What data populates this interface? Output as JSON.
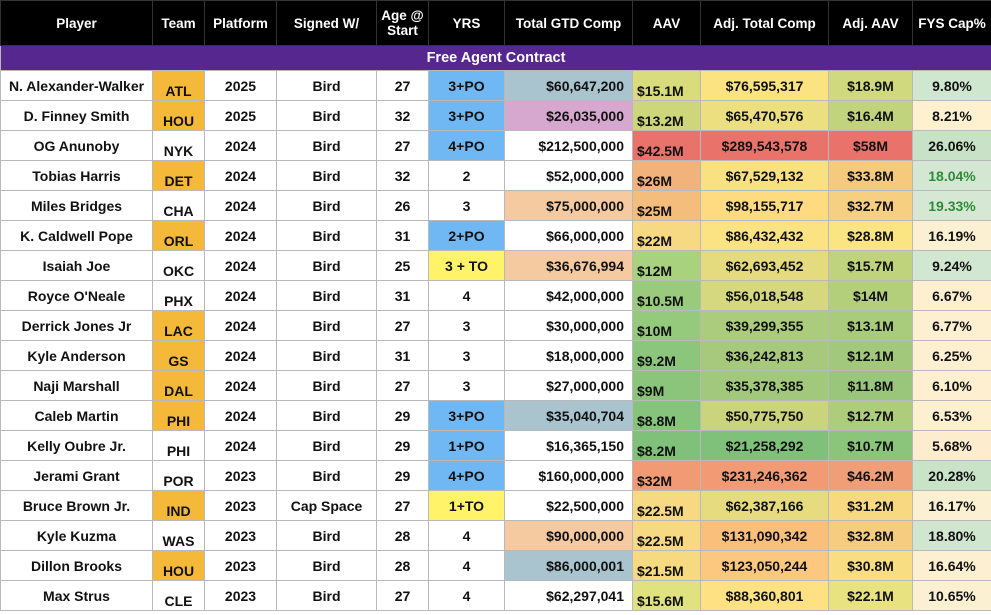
{
  "headers": [
    "Player",
    "Team",
    "Platform",
    "Signed W/",
    "Age @ Start",
    "YRS",
    "Total GTD Comp",
    "AAV",
    "Adj. Total Comp",
    "Adj. AAV",
    "FYS Cap%"
  ],
  "header_age_line1": "Age @",
  "header_age_line2": "Start",
  "banner": "Free Agent Contract",
  "rows": [
    {
      "player": "N. Alexander-Walker",
      "team": "ATL",
      "platform": "2025",
      "signed": "Bird",
      "age": "27",
      "yrs": "3+PO",
      "gtd": "$60,647,200",
      "aav": "$15.1M",
      "adj_total": "$76,595,317",
      "adj_aav": "$18.9M",
      "fys": "9.80%"
    },
    {
      "player": "D. Finney Smith",
      "team": "HOU",
      "platform": "2025",
      "signed": "Bird",
      "age": "32",
      "yrs": "3+PO",
      "gtd": "$26,035,000",
      "aav": "$13.2M",
      "adj_total": "$65,470,576",
      "adj_aav": "$16.4M",
      "fys": "8.21%"
    },
    {
      "player": "OG Anunoby",
      "team": "NYK",
      "platform": "2024",
      "signed": "Bird",
      "age": "27",
      "yrs": "4+PO",
      "gtd": "$212,500,000",
      "aav": "$42.5M",
      "adj_total": "$289,543,578",
      "adj_aav": "$58M",
      "fys": "26.06%"
    },
    {
      "player": "Tobias Harris",
      "team": "DET",
      "platform": "2024",
      "signed": "Bird",
      "age": "32",
      "yrs": "2",
      "gtd": "$52,000,000",
      "aav": "$26M",
      "adj_total": "$67,529,132",
      "adj_aav": "$33.8M",
      "fys": "18.04%"
    },
    {
      "player": "Miles Bridges",
      "team": "CHA",
      "platform": "2024",
      "signed": "Bird",
      "age": "26",
      "yrs": "3",
      "gtd": "$75,000,000",
      "aav": "$25M",
      "adj_total": "$98,155,717",
      "adj_aav": "$32.7M",
      "fys": "19.33%"
    },
    {
      "player": "K. Caldwell Pope",
      "team": "ORL",
      "platform": "2024",
      "signed": "Bird",
      "age": "31",
      "yrs": "2+PO",
      "gtd": "$66,000,000",
      "aav": "$22M",
      "adj_total": "$86,432,432",
      "adj_aav": "$28.8M",
      "fys": "16.19%"
    },
    {
      "player": "Isaiah Joe",
      "team": "OKC",
      "platform": "2024",
      "signed": "Bird",
      "age": "25",
      "yrs": "3 + TO",
      "gtd": "$36,676,994",
      "aav": "$12M",
      "adj_total": "$62,693,452",
      "adj_aav": "$15.7M",
      "fys": "9.24%"
    },
    {
      "player": "Royce O'Neale",
      "team": "PHX",
      "platform": "2024",
      "signed": "Bird",
      "age": "31",
      "yrs": "4",
      "gtd": "$42,000,000",
      "aav": "$10.5M",
      "adj_total": "$56,018,548",
      "adj_aav": "$14M",
      "fys": "6.67%"
    },
    {
      "player": "Derrick Jones Jr",
      "team": "LAC",
      "platform": "2024",
      "signed": "Bird",
      "age": "27",
      "yrs": "3",
      "gtd": "$30,000,000",
      "aav": "$10M",
      "adj_total": "$39,299,355",
      "adj_aav": "$13.1M",
      "fys": "6.77%"
    },
    {
      "player": "Kyle Anderson",
      "team": "GS",
      "platform": "2024",
      "signed": "Bird",
      "age": "31",
      "yrs": "3",
      "gtd": "$18,000,000",
      "aav": "$9.2M",
      "adj_total": "$36,242,813",
      "adj_aav": "$12.1M",
      "fys": "6.25%"
    },
    {
      "player": "Naji Marshall",
      "team": "DAL",
      "platform": "2024",
      "signed": "Bird",
      "age": "27",
      "yrs": "3",
      "gtd": "$27,000,000",
      "aav": "$9M",
      "adj_total": "$35,378,385",
      "adj_aav": "$11.8M",
      "fys": "6.10%"
    },
    {
      "player": "Caleb Martin",
      "team": "PHI",
      "platform": "2024",
      "signed": "Bird",
      "age": "29",
      "yrs": "3+PO",
      "gtd": "$35,040,704",
      "aav": "$8.8M",
      "adj_total": "$50,775,750",
      "adj_aav": "$12.7M",
      "fys": "6.53%"
    },
    {
      "player": "Kelly Oubre Jr.",
      "team": "PHI",
      "platform": "2024",
      "signed": "Bird",
      "age": "29",
      "yrs": "1+PO",
      "gtd": "$16,365,150",
      "aav": "$8.2M",
      "adj_total": "$21,258,292",
      "adj_aav": "$10.7M",
      "fys": "5.68%"
    },
    {
      "player": "Jerami Grant",
      "team": "POR",
      "platform": "2023",
      "signed": "Bird",
      "age": "29",
      "yrs": "4+PO",
      "gtd": "$160,000,000",
      "aav": "$32M",
      "adj_total": "$231,246,362",
      "adj_aav": "$46.2M",
      "fys": "20.28%"
    },
    {
      "player": "Bruce Brown Jr.",
      "team": "IND",
      "platform": "2023",
      "signed": "Cap Space",
      "age": "27",
      "yrs": "1+TO",
      "gtd": "$22,500,000",
      "aav": "$22.5M",
      "adj_total": "$62,387,166",
      "adj_aav": "$31.2M",
      "fys": "16.17%"
    },
    {
      "player": "Kyle Kuzma",
      "team": "WAS",
      "platform": "2023",
      "signed": "Bird",
      "age": "28",
      "yrs": "4",
      "gtd": "$90,000,000",
      "aav": "$22.5M",
      "adj_total": "$131,090,342",
      "adj_aav": "$32.8M",
      "fys": "18.80%"
    },
    {
      "player": "Dillon Brooks",
      "team": "HOU",
      "platform": "2023",
      "signed": "Bird",
      "age": "28",
      "yrs": "4",
      "gtd": "$86,000,001",
      "aav": "$21.5M",
      "adj_total": "$123,050,244",
      "adj_aav": "$30.8M",
      "fys": "16.64%"
    },
    {
      "player": "Max Strus",
      "team": "CLE",
      "platform": "2023",
      "signed": "Bird",
      "age": "27",
      "yrs": "4",
      "gtd": "$62,297,041",
      "aav": "$15.6M",
      "adj_total": "$88,360,801",
      "adj_aav": "$22.1M",
      "fys": "10.65%"
    }
  ],
  "colors": {
    "header_bg": "#000000",
    "banner_bg": "#55278f",
    "team_highlight": "#f5b93a",
    "yrs_blue": "#6fb8f4",
    "yrs_yellow": "#fff36a",
    "gtd_gray": "#a9c4cf",
    "gtd_pink": "#d7a8cf",
    "gtd_peach": "#f5caa0",
    "fys_green_text": "#2e8b3a"
  },
  "styles": {
    "team_highlight": [
      "ATL",
      "HOU",
      "DET",
      "ORL",
      "LAC",
      "GS",
      "DAL",
      "PHI_0",
      "IND",
      "HOU_2"
    ],
    "team_hl_rows": [
      0,
      1,
      3,
      5,
      8,
      9,
      10,
      11,
      14,
      16
    ],
    "yrs_bg": [
      "#6fb8f4",
      "#6fb8f4",
      "#6fb8f4",
      "",
      "",
      "#6fb8f4",
      "#fff36a",
      "",
      "",
      "",
      "",
      "#6fb8f4",
      "#6fb8f4",
      "#6fb8f4",
      "#fff36a",
      "",
      "",
      ""
    ],
    "gtd_bg": [
      "#a9c4cf",
      "#d7a8cf",
      "",
      "",
      "#f5caa0",
      "",
      "#f5caa0",
      "",
      "",
      "",
      "",
      "#a9c4cf",
      "",
      "",
      "",
      "#f5caa0",
      "#a9c4cf",
      ""
    ],
    "aav_bg": [
      "#d8dc7d",
      "#cdd67b",
      "#e9736a",
      "#f2b27c",
      "#f4bd7c",
      "#f7d883",
      "#a8d27e",
      "#9acb7c",
      "#95c97c",
      "#8cc67c",
      "#8ac57b",
      "#86c37b",
      "#7fc07a",
      "#f19a74",
      "#f7d883",
      "#f7d883",
      "#f6da82",
      "#e0e27f"
    ],
    "adj_total_bg": [
      "#fbe382",
      "#ecdf80",
      "#e9736a",
      "#f9e182",
      "#fedb81",
      "#fbe282",
      "#e4db7e",
      "#d5d87e",
      "#abcc7d",
      "#a6c97c",
      "#a2c87c",
      "#c9d47d",
      "#7fc07a",
      "#f19a74",
      "#e6dc7f",
      "#fbbf7c",
      "#fcc77e",
      "#fde182"
    ],
    "adj_aav_bg": [
      "#d0d97e",
      "#c1d47d",
      "#e9736a",
      "#f5ca7f",
      "#f6cf80",
      "#fbe482",
      "#bed37c",
      "#b4cf7c",
      "#a8cb7c",
      "#a1c87b",
      "#9ac67b",
      "#aecd7c",
      "#8bc47b",
      "#f09e76",
      "#f8d981",
      "#f5cc80",
      "#f8dd82",
      "#e9e281"
    ],
    "fys_bg": [
      "#cfe6cf",
      "#fdf1d0",
      "#c7e2c6",
      "#d3e7d2",
      "#d6e8d4",
      "#fbf0d2",
      "#d2e7d1",
      "#fdefd0",
      "#fdf0d1",
      "#fdf0d1",
      "#fdefd0",
      "#fdf0d1",
      "#fdeccd",
      "#c9e3c8",
      "#fbf0d2",
      "#d0e6cf",
      "#fdf0d1",
      "#fbf0d2"
    ],
    "fys_green": [
      3,
      4
    ],
    "row_bg": "#ffffff"
  }
}
